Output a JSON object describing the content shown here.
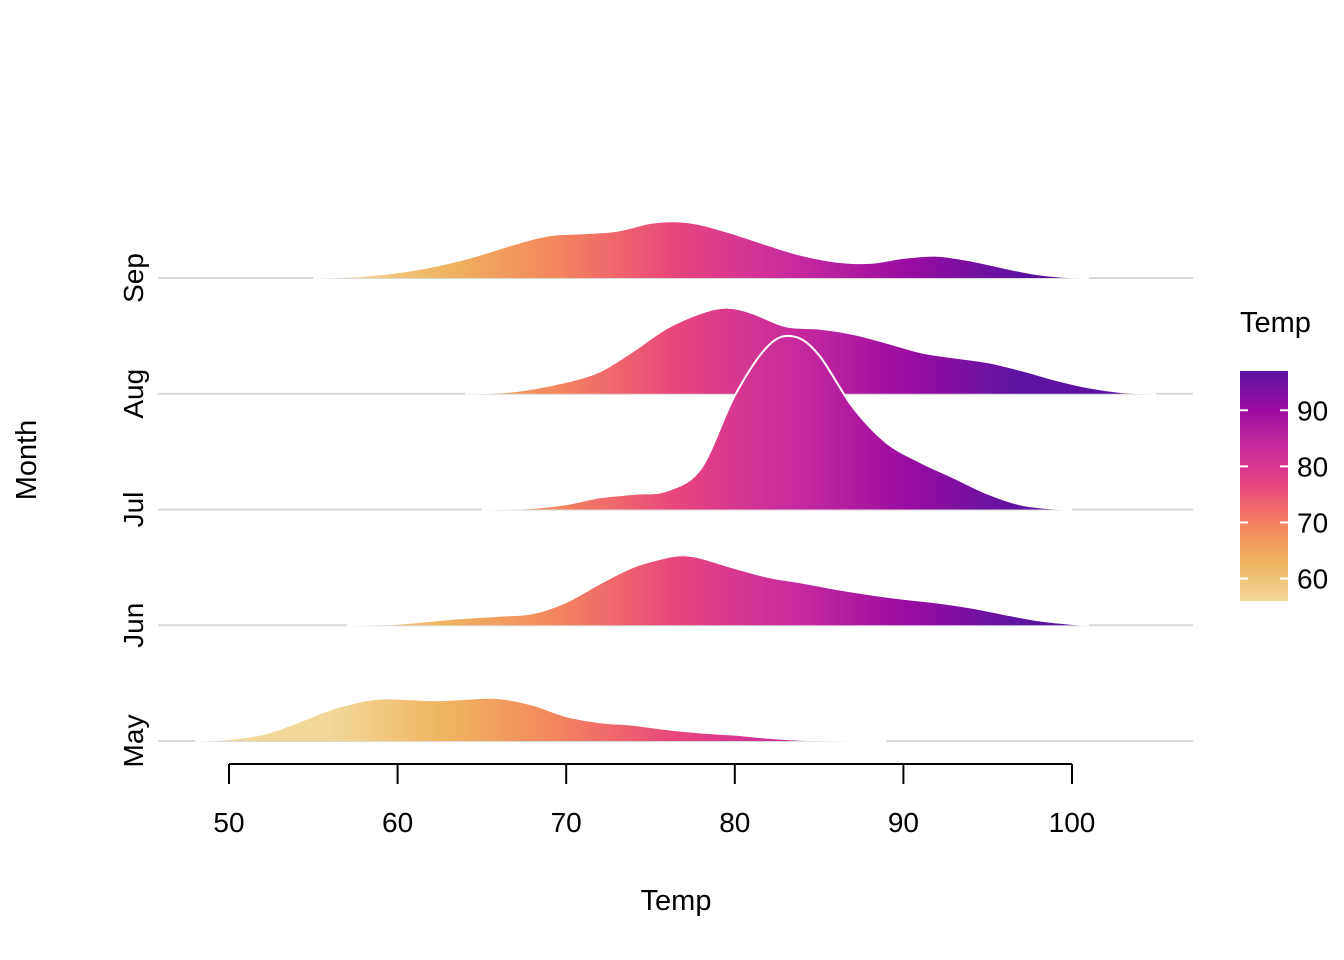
{
  "chart_data": {
    "type": "ridgeline",
    "title": "",
    "xlabel": "Temp",
    "ylabel": "Month",
    "xlim": [
      48,
      105
    ],
    "x_ticks": [
      50,
      60,
      70,
      80,
      90,
      100
    ],
    "x_tick_labels": [
      "50",
      "60",
      "70",
      "80",
      "90",
      "100"
    ],
    "grid": "horizontal baselines only",
    "color_scale": {
      "name": "plasma",
      "variable": "Temp",
      "range": [
        56,
        97
      ],
      "stops": [
        "#F0D899",
        "#EFB45F",
        "#F3845E",
        "#E8457D",
        "#C82B9E",
        "#9A0CA1",
        "#5C14A0"
      ]
    },
    "legend": {
      "title": "Temp",
      "position": "right",
      "ticks": [
        60,
        70,
        80,
        90
      ],
      "tick_labels": [
        "60",
        "70",
        "80",
        "90"
      ]
    },
    "series": [
      {
        "name": "May",
        "x": [
          48.0,
          50.0,
          52.0,
          54.0,
          56.0,
          58.0,
          59.0,
          60.0,
          62.0,
          63.0,
          64.0,
          66.0,
          68.0,
          70.0,
          72.0,
          74.0,
          76.0,
          78.0,
          80.0,
          82.0,
          84.0,
          86.0,
          88.0,
          89.0
        ],
        "density": [
          0.0,
          0.007,
          0.026,
          0.069,
          0.119,
          0.152,
          0.16,
          0.16,
          0.154,
          0.155,
          0.159,
          0.162,
          0.137,
          0.094,
          0.071,
          0.061,
          0.044,
          0.032,
          0.024,
          0.012,
          0.004,
          0.001,
          0.0,
          0.0
        ]
      },
      {
        "name": "Jun",
        "x": [
          57.0,
          60.0,
          63.0,
          66.0,
          68.0,
          70.0,
          72.0,
          74.0,
          76.0,
          77.0,
          78.0,
          80.0,
          82.0,
          84.0,
          86.0,
          88.0,
          90.0,
          92.0,
          94.0,
          96.0,
          98.0,
          100.0,
          101.0
        ],
        "density": [
          0.0,
          0.006,
          0.023,
          0.036,
          0.045,
          0.088,
          0.158,
          0.221,
          0.257,
          0.264,
          0.254,
          0.216,
          0.182,
          0.161,
          0.137,
          0.117,
          0.1,
          0.086,
          0.067,
          0.042,
          0.019,
          0.005,
          0.0
        ]
      },
      {
        "name": "Jul",
        "x": [
          65.0,
          68.0,
          70.0,
          72.0,
          74.0,
          76.0,
          78.0,
          80.0,
          82.0,
          83.5,
          85.0,
          87.0,
          89.0,
          91.0,
          93.0,
          95.0,
          97.0,
          99.0,
          100.0
        ],
        "density": [
          0.0,
          0.006,
          0.02,
          0.046,
          0.059,
          0.072,
          0.156,
          0.43,
          0.619,
          0.653,
          0.582,
          0.386,
          0.252,
          0.179,
          0.12,
          0.06,
          0.018,
          0.003,
          0.0
        ]
      },
      {
        "name": "Aug",
        "x": [
          64.0,
          67.0,
          70.0,
          72.0,
          74.0,
          76.0,
          78.0,
          79.5,
          81.0,
          83.0,
          85.0,
          87.0,
          89.0,
          91.0,
          93.0,
          95.0,
          97.0,
          99.0,
          101.0,
          103.0,
          105.0
        ],
        "density": [
          0.0,
          0.01,
          0.045,
          0.085,
          0.163,
          0.249,
          0.305,
          0.325,
          0.305,
          0.255,
          0.246,
          0.226,
          0.193,
          0.157,
          0.137,
          0.119,
          0.089,
          0.053,
          0.024,
          0.006,
          0.0
        ]
      },
      {
        "name": "Sep",
        "x": [
          55.0,
          58.0,
          61.0,
          64.0,
          67.0,
          69.0,
          71.0,
          73.0,
          75.0,
          76.5,
          78.0,
          80.0,
          82.0,
          84.0,
          86.0,
          88.0,
          90.0,
          92.0,
          94.0,
          96.0,
          98.0,
          100.0,
          101.0
        ],
        "density": [
          0.0,
          0.008,
          0.031,
          0.072,
          0.13,
          0.161,
          0.169,
          0.178,
          0.208,
          0.214,
          0.202,
          0.166,
          0.124,
          0.086,
          0.062,
          0.057,
          0.076,
          0.084,
          0.066,
          0.038,
          0.014,
          0.002,
          0.0
        ]
      }
    ]
  }
}
